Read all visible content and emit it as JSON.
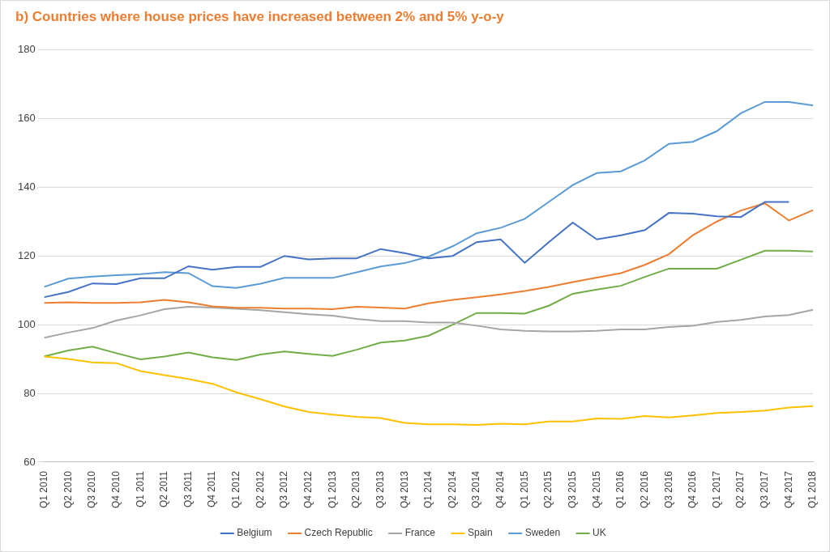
{
  "chart_data": {
    "type": "line",
    "title": "b) Countries where house prices have increased between 2% and 5% y-o-y",
    "categories": [
      "Q1 2010",
      "Q2 2010",
      "Q3 2010",
      "Q4 2010",
      "Q1 2011",
      "Q2 2011",
      "Q3 2011",
      "Q4 2011",
      "Q1 2012",
      "Q2 2012",
      "Q3 2012",
      "Q4 2012",
      "Q1 2013",
      "Q2 2013",
      "Q3 2013",
      "Q4 2013",
      "Q1 2014",
      "Q2 2014",
      "Q3 2014",
      "Q4 2014",
      "Q1 2015",
      "Q2 2015",
      "Q3 2015",
      "Q4 2015",
      "Q1 2016",
      "Q2 2016",
      "Q3 2016",
      "Q4 2016",
      "Q1 2017",
      "Q2 2017",
      "Q3 2017",
      "Q4 2017",
      "Q1 2018"
    ],
    "series": [
      {
        "name": "Belgium",
        "color": "#4472c4",
        "values": [
          108,
          109.5,
          112,
          111.8,
          113.5,
          113.5,
          117,
          116,
          116.8,
          116.8,
          120,
          119,
          119.3,
          119.3,
          122,
          120.8,
          119.3,
          120,
          124,
          124.8,
          118,
          124,
          129.7,
          124.8,
          126,
          127.5,
          132.5,
          132.3,
          131.5,
          131.3,
          135.7,
          135.7,
          null
        ]
      },
      {
        "name": "Czech Republic",
        "color": "#ed7d31",
        "values": [
          106.3,
          106.5,
          106.3,
          106.3,
          106.5,
          107.2,
          106.5,
          105.3,
          104.9,
          104.9,
          104.7,
          104.7,
          104.5,
          105.2,
          105,
          104.7,
          106.2,
          107.2,
          108,
          108.8,
          109.8,
          111,
          112.4,
          113.7,
          115,
          117.4,
          120.5,
          126,
          130,
          133.2,
          135.3,
          130.3,
          133.3
        ]
      },
      {
        "name": "France",
        "color": "#a5a5a5",
        "values": [
          96.2,
          97.7,
          99,
          101.2,
          102.7,
          104.5,
          105.2,
          105,
          104.6,
          104.2,
          103.6,
          103,
          102.6,
          101.7,
          101,
          101,
          100.6,
          100.6,
          99.7,
          98.6,
          98.2,
          98,
          98,
          98.2,
          98.6,
          98.6,
          99.3,
          99.7,
          100.8,
          101.4,
          102.4,
          102.8,
          104.3
        ]
      },
      {
        "name": "Spain",
        "color": "#ffc000",
        "values": [
          90.7,
          90,
          89,
          88.8,
          86.5,
          85.3,
          84.2,
          82.8,
          80.3,
          78.3,
          76.2,
          74.6,
          73.8,
          73.2,
          72.8,
          71.4,
          71,
          71,
          70.8,
          71.2,
          71,
          71.8,
          71.8,
          72.7,
          72.6,
          73.4,
          73,
          73.6,
          74.3,
          74.6,
          75,
          75.9,
          76.3
        ]
      },
      {
        "name": "Sweden",
        "color": "#5b9bd5",
        "values": [
          111,
          113.4,
          114,
          114.4,
          114.7,
          115.3,
          115,
          111.2,
          110.7,
          111.9,
          113.6,
          113.6,
          113.6,
          115.2,
          116.9,
          117.9,
          119.8,
          122.8,
          126.6,
          128.2,
          130.8,
          135.7,
          140.6,
          144.1,
          144.6,
          147.8,
          152.6,
          153.2,
          156.3,
          161.5,
          164.8,
          164.8,
          163.8
        ]
      },
      {
        "name": "UK",
        "color": "#70ad47",
        "values": [
          90.8,
          92.5,
          93.6,
          91.7,
          89.9,
          90.7,
          91.9,
          90.5,
          89.7,
          91.3,
          92.2,
          91.5,
          90.9,
          92.7,
          94.8,
          95.4,
          96.8,
          100,
          103.4,
          103.4,
          103.2,
          105.5,
          109,
          110.2,
          111.3,
          113.9,
          116.3,
          116.3,
          116.3,
          118.9,
          121.5,
          121.5,
          121.3
        ]
      }
    ],
    "ylim": [
      60,
      180
    ],
    "yticks": [
      60,
      80,
      100,
      120,
      140,
      160,
      180
    ],
    "grid": true,
    "legend": "bottom"
  }
}
